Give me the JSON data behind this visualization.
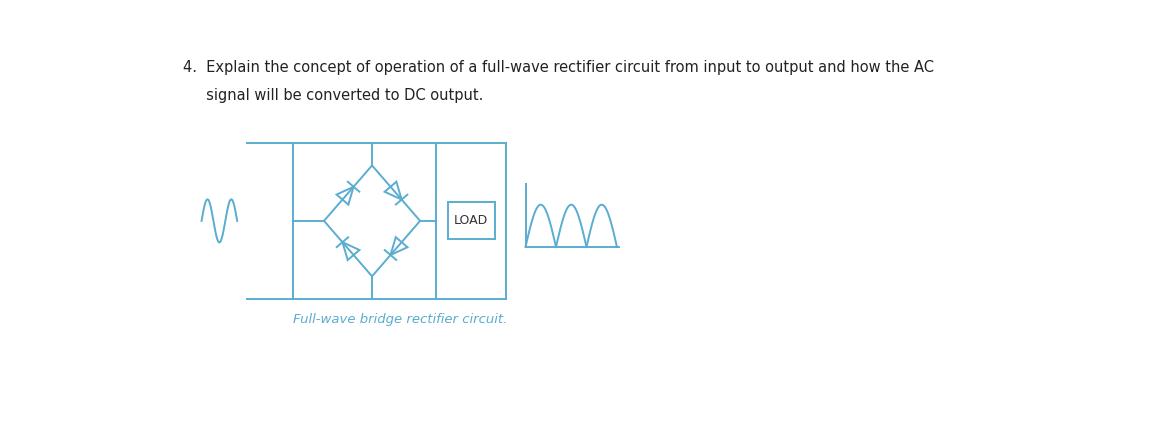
{
  "caption": "Full-wave bridge rectifier circuit.",
  "load_label": "LOAD",
  "circuit_color": "#5aadd0",
  "text_color": "#333333",
  "bg_color": "#ffffff",
  "fig_width": 11.66,
  "fig_height": 4.29,
  "dpi": 100,
  "title_line1": "4.  Explain the concept of operation of a full-wave rectifier circuit from input to output and how the AC",
  "title_line2": "     signal will be converted to DC output."
}
